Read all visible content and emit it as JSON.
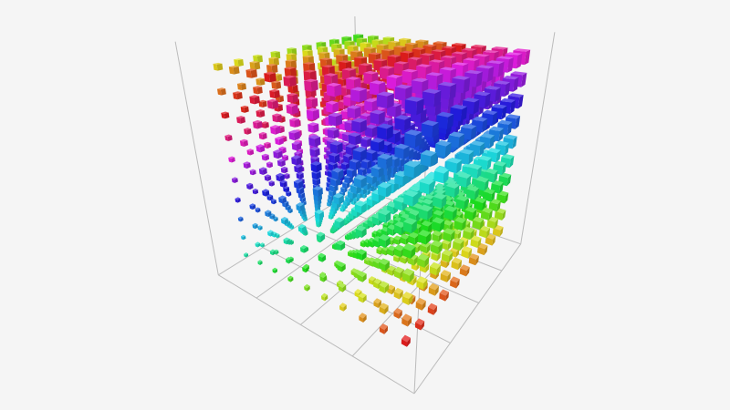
{
  "chart_data": {
    "type": "scatter3d",
    "symbol": "cube",
    "x": [
      0,
      1,
      2,
      3,
      4,
      5,
      6,
      7,
      8,
      9
    ],
    "y": [
      0,
      1,
      2,
      3,
      4,
      5,
      6,
      7,
      8,
      9
    ],
    "z": [
      0,
      1,
      2,
      3,
      4,
      5,
      6,
      7,
      8,
      9
    ],
    "color_encoding": "hue",
    "size_encoding": "value",
    "grid": true,
    "axis_line_color": "#bbbbbb",
    "background": "#f5f5f5"
  }
}
